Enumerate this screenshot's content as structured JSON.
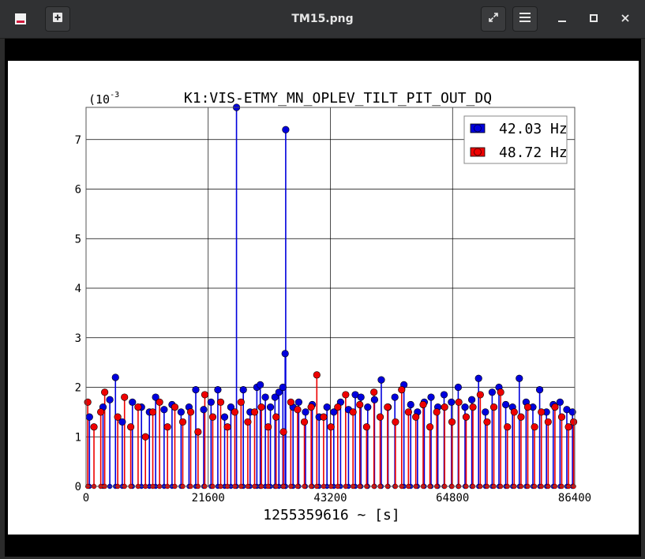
{
  "window": {
    "title": "TM15.png",
    "icons": [
      "app-icon",
      "new-tab-icon",
      "fullscreen-icon",
      "menu-icon",
      "minimize-icon",
      "maximize-icon",
      "close-icon"
    ]
  },
  "chart_data": {
    "type": "scatter",
    "title": "K1:VIS-ETMY_MN_OPLEV_TILT_PIT_OUT_DQ",
    "xlabel": "1255359616 ~ [s]",
    "ylabel": "",
    "y_scale_label": "(10",
    "y_scale_exp": "-3",
    "xlim": [
      0,
      86400
    ],
    "ylim": [
      0,
      7.65
    ],
    "x_ticks": [
      0,
      21600,
      43200,
      64800,
      86400
    ],
    "x_tick_labels": [
      "0",
      "21600",
      "43200",
      "64800",
      "86400"
    ],
    "y_ticks": [
      0,
      1,
      2,
      3,
      4,
      5,
      6,
      7
    ],
    "y_tick_labels": [
      "0",
      "1",
      "2",
      "3",
      "4",
      "5",
      "6",
      "7"
    ],
    "grid": true,
    "legend_position": "top-right",
    "marker": "stem",
    "series": [
      {
        "name": "42.03 Hz",
        "color": "#0000dd",
        "points": [
          [
            600,
            1.4
          ],
          [
            3000,
            1.6
          ],
          [
            4200,
            1.75
          ],
          [
            5200,
            2.2
          ],
          [
            6400,
            1.3
          ],
          [
            8200,
            1.7
          ],
          [
            9800,
            1.6
          ],
          [
            11200,
            1.5
          ],
          [
            12300,
            1.8
          ],
          [
            13800,
            1.55
          ],
          [
            15200,
            1.65
          ],
          [
            16800,
            1.5
          ],
          [
            18200,
            1.6
          ],
          [
            19400,
            1.95
          ],
          [
            20800,
            1.55
          ],
          [
            22100,
            1.7
          ],
          [
            23300,
            1.95
          ],
          [
            24500,
            1.4
          ],
          [
            25600,
            1.6
          ],
          [
            26600,
            7.65
          ],
          [
            27800,
            1.95
          ],
          [
            29000,
            1.5
          ],
          [
            30200,
            2.0
          ],
          [
            30800,
            2.05
          ],
          [
            31700,
            1.8
          ],
          [
            32600,
            1.6
          ],
          [
            33400,
            1.8
          ],
          [
            34100,
            1.9
          ],
          [
            34800,
            2.0
          ],
          [
            35200,
            2.68
          ],
          [
            35300,
            7.2
          ],
          [
            36600,
            1.6
          ],
          [
            37600,
            1.7
          ],
          [
            38800,
            1.5
          ],
          [
            40000,
            1.65
          ],
          [
            41200,
            1.4
          ],
          [
            42600,
            1.6
          ],
          [
            43800,
            1.5
          ],
          [
            45000,
            1.7
          ],
          [
            46400,
            1.55
          ],
          [
            47600,
            1.85
          ],
          [
            48600,
            1.8
          ],
          [
            49800,
            1.6
          ],
          [
            51000,
            1.75
          ],
          [
            52200,
            2.15
          ],
          [
            53400,
            1.6
          ],
          [
            54600,
            1.8
          ],
          [
            56200,
            2.05
          ],
          [
            57400,
            1.65
          ],
          [
            58600,
            1.5
          ],
          [
            59800,
            1.7
          ],
          [
            61000,
            1.8
          ],
          [
            62200,
            1.6
          ],
          [
            63300,
            1.85
          ],
          [
            64600,
            1.7
          ],
          [
            65800,
            2.0
          ],
          [
            67000,
            1.6
          ],
          [
            68200,
            1.75
          ],
          [
            69400,
            2.18
          ],
          [
            70600,
            1.5
          ],
          [
            71800,
            1.9
          ],
          [
            73000,
            2.0
          ],
          [
            74200,
            1.65
          ],
          [
            75400,
            1.6
          ],
          [
            76600,
            2.18
          ],
          [
            77800,
            1.7
          ],
          [
            79000,
            1.6
          ],
          [
            80200,
            1.95
          ],
          [
            81400,
            1.5
          ],
          [
            82600,
            1.65
          ],
          [
            83800,
            1.7
          ],
          [
            85000,
            1.55
          ],
          [
            86000,
            1.5
          ]
        ]
      },
      {
        "name": "48.72 Hz",
        "color": "#ee0000",
        "points": [
          [
            300,
            1.7
          ],
          [
            1400,
            1.2
          ],
          [
            2600,
            1.5
          ],
          [
            3300,
            1.9
          ],
          [
            5600,
            1.4
          ],
          [
            6800,
            1.8
          ],
          [
            7900,
            1.2
          ],
          [
            9200,
            1.6
          ],
          [
            10500,
            1.0
          ],
          [
            11800,
            1.5
          ],
          [
            13000,
            1.7
          ],
          [
            14400,
            1.2
          ],
          [
            15700,
            1.6
          ],
          [
            17100,
            1.3
          ],
          [
            18500,
            1.5
          ],
          [
            19800,
            1.1
          ],
          [
            21000,
            1.85
          ],
          [
            22400,
            1.4
          ],
          [
            23800,
            1.7
          ],
          [
            25000,
            1.2
          ],
          [
            26300,
            1.5
          ],
          [
            27400,
            1.7
          ],
          [
            28600,
            1.3
          ],
          [
            29800,
            1.5
          ],
          [
            31000,
            1.6
          ],
          [
            32200,
            1.2
          ],
          [
            33600,
            1.4
          ],
          [
            34900,
            1.1
          ],
          [
            36200,
            1.7
          ],
          [
            37400,
            1.55
          ],
          [
            38600,
            1.3
          ],
          [
            39800,
            1.6
          ],
          [
            40800,
            2.25
          ],
          [
            42000,
            1.4
          ],
          [
            43300,
            1.2
          ],
          [
            44500,
            1.6
          ],
          [
            45900,
            1.85
          ],
          [
            47200,
            1.5
          ],
          [
            48400,
            1.65
          ],
          [
            49600,
            1.2
          ],
          [
            50900,
            1.9
          ],
          [
            52000,
            1.4
          ],
          [
            53300,
            1.6
          ],
          [
            54700,
            1.3
          ],
          [
            55800,
            1.95
          ],
          [
            57000,
            1.5
          ],
          [
            58300,
            1.4
          ],
          [
            59600,
            1.65
          ],
          [
            60800,
            1.2
          ],
          [
            62000,
            1.5
          ],
          [
            63400,
            1.6
          ],
          [
            64700,
            1.3
          ],
          [
            65900,
            1.7
          ],
          [
            67200,
            1.4
          ],
          [
            68400,
            1.6
          ],
          [
            69700,
            1.85
          ],
          [
            70900,
            1.3
          ],
          [
            72100,
            1.6
          ],
          [
            73300,
            1.9
          ],
          [
            74500,
            1.2
          ],
          [
            75700,
            1.5
          ],
          [
            76900,
            1.4
          ],
          [
            78100,
            1.6
          ],
          [
            79300,
            1.2
          ],
          [
            80500,
            1.5
          ],
          [
            81700,
            1.3
          ],
          [
            82900,
            1.6
          ],
          [
            84100,
            1.4
          ],
          [
            85300,
            1.2
          ],
          [
            86200,
            1.3
          ]
        ]
      }
    ]
  }
}
